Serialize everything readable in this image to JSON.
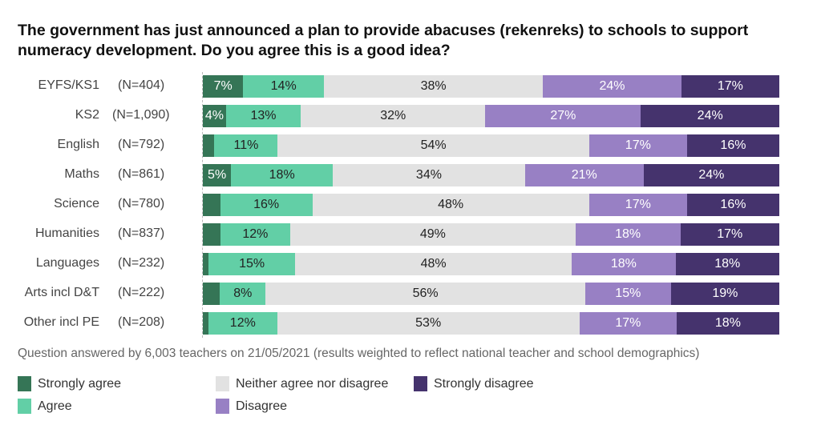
{
  "chart_data": {
    "type": "bar",
    "orientation": "horizontal-stacked-100",
    "title": "The government has just announced a plan to provide abacuses (rekenreks) to schools to support numeracy development. Do you agree this is a good idea?",
    "note": "Question answered by 6,003 teachers on 21/05/2021 (results weighted to reflect national teacher and school demographics)",
    "series_names": [
      "Strongly agree",
      "Agree",
      "Neither agree nor disagree",
      "Disagree",
      "Strongly disagree"
    ],
    "colors": [
      "#357556",
      "#62cfa6",
      "#e2e2e2",
      "#9880c4",
      "#45336d"
    ],
    "text_colors": [
      "#ffffff",
      "#222222",
      "#222222",
      "#ffffff",
      "#ffffff"
    ],
    "categories": [
      {
        "label": "EYFS/KS1",
        "n": "(N=404)",
        "values": [
          7,
          14,
          38,
          24,
          17
        ],
        "show": [
          true,
          true,
          true,
          true,
          true
        ]
      },
      {
        "label": "KS2",
        "n": "(N=1,090)",
        "values": [
          4,
          13,
          32,
          27,
          24
        ],
        "show": [
          true,
          true,
          true,
          true,
          true
        ]
      },
      {
        "label": "English",
        "n": "(N=792)",
        "values": [
          2,
          11,
          54,
          17,
          16
        ],
        "show": [
          false,
          true,
          true,
          true,
          true
        ]
      },
      {
        "label": "Maths",
        "n": "(N=861)",
        "values": [
          5,
          18,
          34,
          21,
          24
        ],
        "show": [
          true,
          true,
          true,
          true,
          true
        ]
      },
      {
        "label": "Science",
        "n": "(N=780)",
        "values": [
          3,
          16,
          48,
          17,
          16
        ],
        "show": [
          false,
          true,
          true,
          true,
          true
        ]
      },
      {
        "label": "Humanities",
        "n": "(N=837)",
        "values": [
          3,
          12,
          49,
          18,
          17
        ],
        "show": [
          false,
          true,
          true,
          true,
          true
        ]
      },
      {
        "label": "Languages",
        "n": "(N=232)",
        "values": [
          1,
          15,
          48,
          18,
          18
        ],
        "show": [
          false,
          true,
          true,
          true,
          true
        ]
      },
      {
        "label": "Arts incl D&T",
        "n": "(N=222)",
        "values": [
          3,
          8,
          56,
          15,
          19
        ],
        "show": [
          false,
          true,
          true,
          true,
          true
        ]
      },
      {
        "label": "Other incl PE",
        "n": "(N=208)",
        "values": [
          1,
          12,
          53,
          17,
          18
        ],
        "show": [
          false,
          true,
          true,
          true,
          true
        ]
      }
    ],
    "legend_position": "bottom"
  }
}
